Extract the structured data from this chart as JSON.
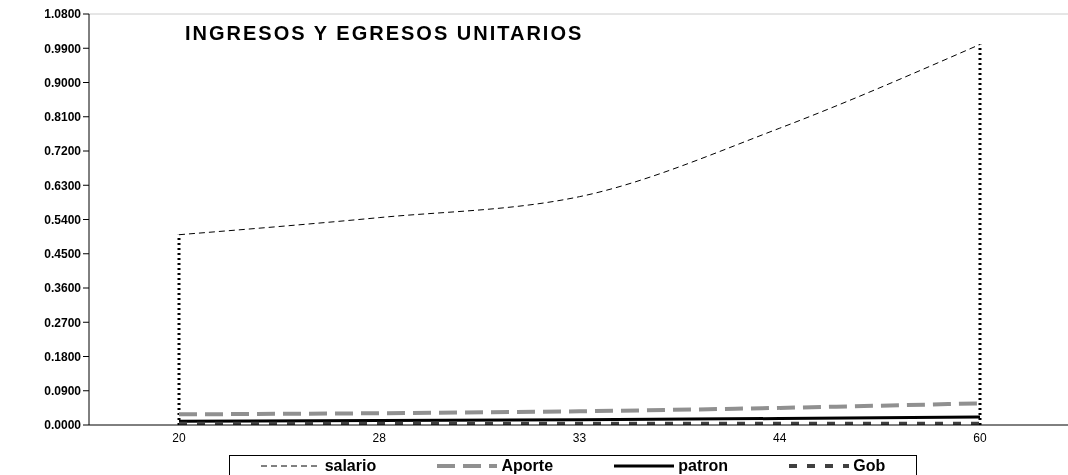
{
  "chart_data": {
    "type": "line",
    "title": "INGRESOS Y EGRESOS UNITARIOS",
    "categories": [
      "20",
      "28",
      "33",
      "44",
      "60"
    ],
    "series": [
      {
        "name": "salario",
        "color": "#000000",
        "line_style": "dashed",
        "values": [
          0.5,
          0.545,
          0.6,
          0.78,
          1.0
        ]
      },
      {
        "name": "Aporte",
        "color": "#909090",
        "line_style": "dashed",
        "values": [
          0.028,
          0.031,
          0.036,
          0.045,
          0.057
        ]
      },
      {
        "name": "patron",
        "color": "#000000",
        "line_style": "solid",
        "values": [
          0.01,
          0.012,
          0.014,
          0.017,
          0.021
        ]
      },
      {
        "name": "Gob",
        "color": "#404040",
        "line_style": "dashed",
        "values": [
          0.003,
          0.003,
          0.003,
          0.003,
          0.003
        ]
      }
    ],
    "ref_lines": [
      {
        "axis": "x",
        "value": "20",
        "color": "#000000",
        "line_style": "dotted"
      },
      {
        "axis": "x",
        "value": "60",
        "color": "#000000",
        "line_style": "dotted"
      }
    ],
    "ylim": [
      0,
      1.08
    ],
    "yticks": [
      {
        "value": 0,
        "label": "0.0000"
      },
      {
        "value": 0.09,
        "label": "0.0900"
      },
      {
        "value": 0.18,
        "label": "0.1800"
      },
      {
        "value": 0.27,
        "label": "0.2700"
      },
      {
        "value": 0.36,
        "label": "0.3600"
      },
      {
        "value": 0.45,
        "label": "0.4500"
      },
      {
        "value": 0.54,
        "label": "0.5400"
      },
      {
        "value": 0.63,
        "label": "0.6300"
      },
      {
        "value": 0.72,
        "label": "0.7200"
      },
      {
        "value": 0.81,
        "label": "0.8100"
      },
      {
        "value": 0.9,
        "label": "0.9000"
      },
      {
        "value": 0.99,
        "label": "0.9900"
      },
      {
        "value": 1.08,
        "label": "1.0800"
      }
    ],
    "grid": false,
    "legend": "bottom",
    "marker": "none"
  }
}
